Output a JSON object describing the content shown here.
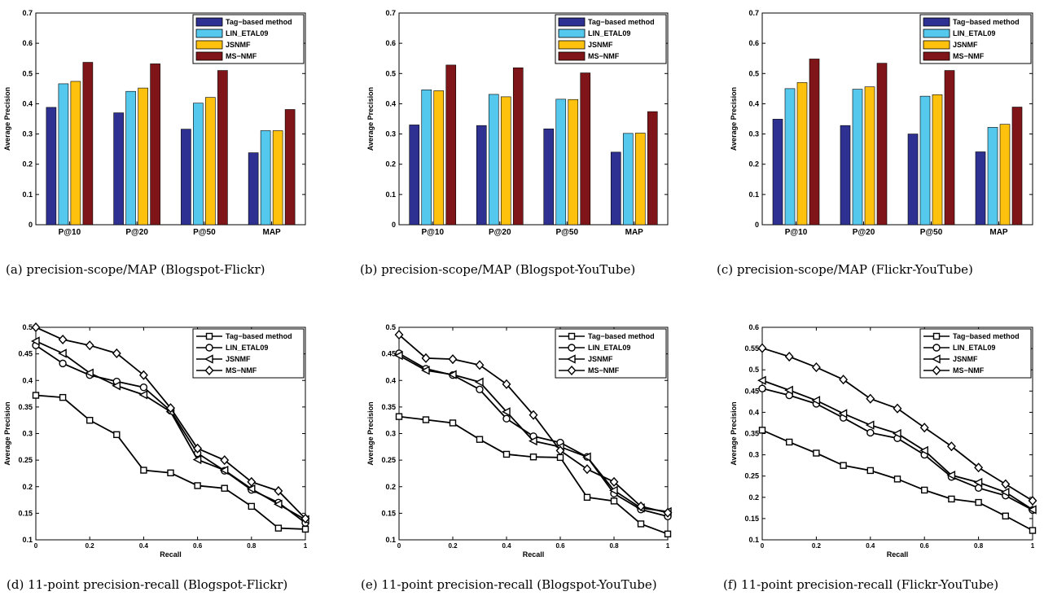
{
  "figure": {
    "captions": [
      "(a) precision-scope/MAP (Blogspot-Flickr)",
      "(b) precision-scope/MAP (Blogspot-YouTube)",
      "(c) precision-scope/MAP (Flickr-YouTube)",
      "(d) 11-point precision-recall (Blogspot-Flickr)",
      "(e) 11-point precision-recall (Blogspot-YouTube)",
      "(f) 11-point precision-recall (Flickr-YouTube)"
    ]
  },
  "colors": {
    "Tag−based method": "#2e3192",
    "LIN_ETAL09": "#55c8ee",
    "JSNMF": "#fec10e",
    "MS−NMF": "#7f1518"
  },
  "chart_data": [
    {
      "type": "bar",
      "categories": [
        "P@10",
        "P@20",
        "P@50",
        "MAP"
      ],
      "series": [
        {
          "name": "Tag−based method",
          "values": [
            0.388,
            0.37,
            0.316,
            0.238
          ]
        },
        {
          "name": "LIN_ETAL09",
          "values": [
            0.466,
            0.441,
            0.402,
            0.311
          ]
        },
        {
          "name": "JSNMF",
          "values": [
            0.474,
            0.452,
            0.421,
            0.311
          ]
        },
        {
          "name": "MS−NMF",
          "values": [
            0.537,
            0.532,
            0.51,
            0.381
          ]
        }
      ],
      "ylabel": "Average Precision",
      "xlabel": "",
      "ylim": [
        0,
        0.7
      ],
      "yticks": [
        "0",
        "0.1",
        "0.2",
        "0.3",
        "0.4",
        "0.5",
        "0.6",
        "0.7"
      ],
      "legend": "top-right",
      "grid": false
    },
    {
      "type": "bar",
      "categories": [
        "P@10",
        "P@20",
        "P@50",
        "MAP"
      ],
      "series": [
        {
          "name": "Tag−based method",
          "values": [
            0.33,
            0.328,
            0.317,
            0.24
          ]
        },
        {
          "name": "LIN_ETAL09",
          "values": [
            0.446,
            0.431,
            0.415,
            0.302
          ]
        },
        {
          "name": "JSNMF",
          "values": [
            0.443,
            0.423,
            0.414,
            0.303
          ]
        },
        {
          "name": "MS−NMF",
          "values": [
            0.528,
            0.519,
            0.502,
            0.374
          ]
        }
      ],
      "ylabel": "Average Precision",
      "xlabel": "",
      "ylim": [
        0,
        0.7
      ],
      "yticks": [
        "0",
        "0.1",
        "0.2",
        "0.3",
        "0.4",
        "0.5",
        "0.6",
        "0.7"
      ],
      "legend": "top-right",
      "grid": false
    },
    {
      "type": "bar",
      "categories": [
        "P@10",
        "P@20",
        "P@50",
        "MAP"
      ],
      "series": [
        {
          "name": "Tag−based method",
          "values": [
            0.349,
            0.328,
            0.3,
            0.241
          ]
        },
        {
          "name": "LIN_ETAL09",
          "values": [
            0.45,
            0.448,
            0.425,
            0.322
          ]
        },
        {
          "name": "JSNMF",
          "values": [
            0.47,
            0.456,
            0.43,
            0.332
          ]
        },
        {
          "name": "MS−NMF",
          "values": [
            0.548,
            0.534,
            0.51,
            0.389
          ]
        }
      ],
      "ylabel": "Average Precision",
      "xlabel": "",
      "ylim": [
        0,
        0.7
      ],
      "yticks": [
        "0",
        "0.1",
        "0.2",
        "0.3",
        "0.4",
        "0.5",
        "0.6",
        "0.7"
      ],
      "legend": "top-right",
      "grid": false
    },
    {
      "type": "line",
      "x": [
        0,
        0.1,
        0.2,
        0.3,
        0.4,
        0.5,
        0.6,
        0.7,
        0.8,
        0.9,
        1
      ],
      "series": [
        {
          "name": "Tag−based method",
          "marker": "square",
          "values": [
            0.372,
            0.368,
            0.325,
            0.298,
            0.231,
            0.226,
            0.202,
            0.197,
            0.163,
            0.122,
            0.12
          ]
        },
        {
          "name": "LIN_ETAL09",
          "marker": "circle",
          "values": [
            0.466,
            0.432,
            0.41,
            0.398,
            0.387,
            0.343,
            0.263,
            0.23,
            0.194,
            0.17,
            0.132
          ]
        },
        {
          "name": "JSNMF",
          "marker": "triangle-left",
          "values": [
            0.474,
            0.451,
            0.414,
            0.39,
            0.373,
            0.341,
            0.251,
            0.231,
            0.196,
            0.167,
            0.138
          ]
        },
        {
          "name": "MS−NMF",
          "marker": "diamond",
          "values": [
            0.5,
            0.477,
            0.466,
            0.451,
            0.41,
            0.348,
            0.272,
            0.25,
            0.209,
            0.192,
            0.14
          ]
        }
      ],
      "xlabel": "Recall",
      "ylabel": "Average Precision",
      "xlim": [
        0,
        1
      ],
      "ylim": [
        0.1,
        0.5
      ],
      "xticks": [
        "0",
        "0.2",
        "0.4",
        "0.6",
        "0.8",
        "1"
      ],
      "yticks": [
        "0.1",
        "0.15",
        "0.2",
        "0.25",
        "0.3",
        "0.35",
        "0.4",
        "0.45",
        "0.5"
      ],
      "legend": "top-right",
      "grid": false
    },
    {
      "type": "line",
      "x": [
        0,
        0.1,
        0.2,
        0.3,
        0.4,
        0.5,
        0.6,
        0.7,
        0.8,
        0.9,
        1
      ],
      "series": [
        {
          "name": "Tag−based method",
          "marker": "square",
          "values": [
            0.332,
            0.326,
            0.32,
            0.289,
            0.261,
            0.256,
            0.255,
            0.18,
            0.173,
            0.13,
            0.111
          ]
        },
        {
          "name": "LIN_ETAL09",
          "marker": "circle",
          "values": [
            0.451,
            0.422,
            0.41,
            0.383,
            0.328,
            0.295,
            0.283,
            0.256,
            0.187,
            0.157,
            0.144
          ]
        },
        {
          "name": "JSNMF",
          "marker": "triangle-left",
          "values": [
            0.447,
            0.419,
            0.411,
            0.397,
            0.341,
            0.286,
            0.275,
            0.256,
            0.193,
            0.16,
            0.153
          ]
        },
        {
          "name": "MS−NMF",
          "marker": "diamond",
          "values": [
            0.486,
            0.442,
            0.44,
            0.429,
            0.393,
            0.335,
            0.268,
            0.233,
            0.209,
            0.163,
            0.151
          ]
        }
      ],
      "xlabel": "Recall",
      "ylabel": "Average Precision",
      "xlim": [
        0,
        1
      ],
      "ylim": [
        0.1,
        0.5
      ],
      "xticks": [
        "0",
        "0.2",
        "0.4",
        "0.6",
        "0.8",
        "1"
      ],
      "yticks": [
        "0.1",
        "0.15",
        "0.2",
        "0.25",
        "0.3",
        "0.35",
        "0.4",
        "0.45",
        "0.5"
      ],
      "legend": "top-right",
      "grid": false
    },
    {
      "type": "line",
      "x": [
        0,
        0.1,
        0.2,
        0.3,
        0.4,
        0.5,
        0.6,
        0.7,
        0.8,
        0.9,
        1
      ],
      "series": [
        {
          "name": "Tag−based method",
          "marker": "square",
          "values": [
            0.358,
            0.33,
            0.304,
            0.275,
            0.263,
            0.243,
            0.217,
            0.196,
            0.188,
            0.156,
            0.122
          ]
        },
        {
          "name": "LIN_ETAL09",
          "marker": "circle",
          "values": [
            0.456,
            0.44,
            0.42,
            0.387,
            0.352,
            0.339,
            0.3,
            0.248,
            0.222,
            0.204,
            0.17
          ]
        },
        {
          "name": "JSNMF",
          "marker": "triangle-left",
          "values": [
            0.475,
            0.452,
            0.428,
            0.397,
            0.37,
            0.35,
            0.31,
            0.252,
            0.235,
            0.212,
            0.171
          ]
        },
        {
          "name": "MS−NMF",
          "marker": "diamond",
          "values": [
            0.551,
            0.531,
            0.506,
            0.477,
            0.432,
            0.409,
            0.364,
            0.32,
            0.27,
            0.231,
            0.192
          ]
        }
      ],
      "xlabel": "Recall",
      "ylabel": "Average Precision",
      "xlim": [
        0,
        1
      ],
      "ylim": [
        0.1,
        0.6
      ],
      "xticks": [
        "0",
        "0.2",
        "0.4",
        "0.6",
        "0.8",
        "1"
      ],
      "yticks": [
        "0.1",
        "0.15",
        "0.2",
        "0.25",
        "0.3",
        "0.35",
        "0.4",
        "0.45",
        "0.5",
        "0.55",
        "0.6"
      ],
      "legend": "top-right",
      "grid": false
    }
  ]
}
